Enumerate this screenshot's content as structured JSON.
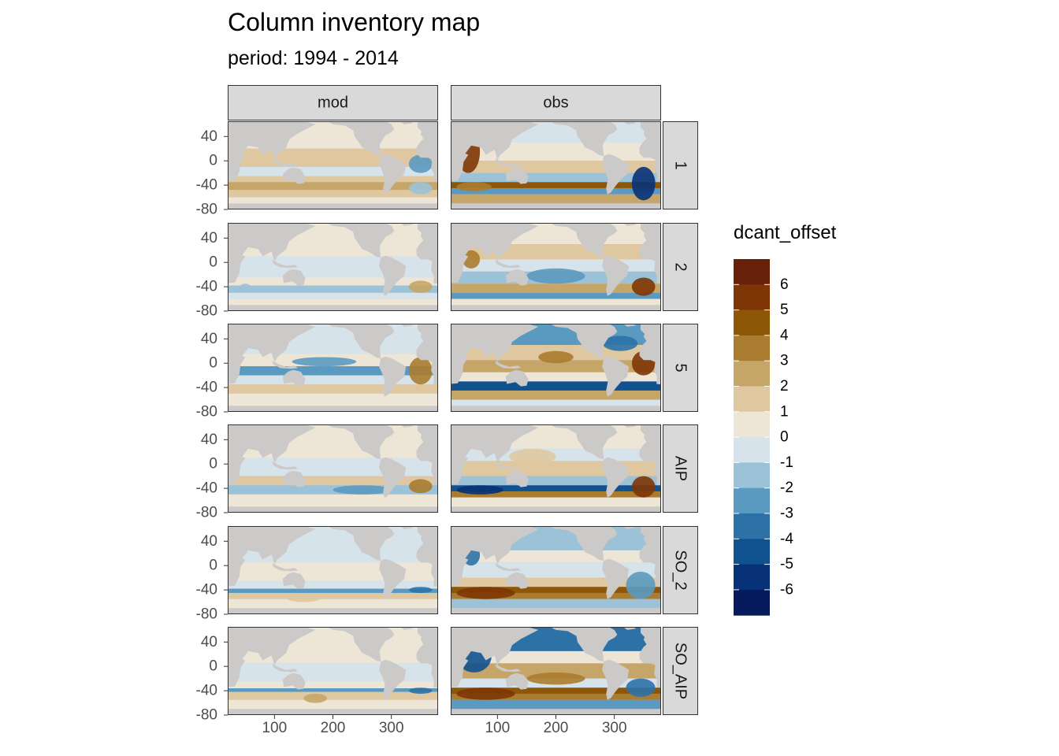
{
  "chart_data": {
    "type": "heatmap",
    "title": "Column inventory map",
    "subtitle": "period: 1994 - 2014",
    "xlabel": "",
    "ylabel": "",
    "x_ticks": [
      "100",
      "200",
      "300"
    ],
    "y_ticks": [
      "40",
      "0",
      "-40",
      "-80"
    ],
    "xlim": [
      20,
      380
    ],
    "ylim": [
      -80,
      65
    ],
    "facet_columns": [
      "mod",
      "obs"
    ],
    "facet_rows": [
      "1",
      "2",
      "5",
      "AIP",
      "SO_2",
      "SO_AIP"
    ],
    "fill_variable": "dcant_offset",
    "legend": {
      "title": "dcant_offset",
      "position": "right",
      "labels": [
        "6",
        "5",
        "4",
        "3",
        "2",
        "1",
        "0",
        "-1",
        "-2",
        "-3",
        "-4",
        "-5",
        "-6"
      ],
      "colors": [
        "#67200a",
        "#7e3606",
        "#8e5607",
        "#aa7c2f",
        "#c6a668",
        "#dfc8a0",
        "#ede5d6",
        "#d7e3ea",
        "#9cc2d8",
        "#5b9ac0",
        "#2c72a7",
        "#10518f",
        "#083277",
        "#061a5c"
      ]
    },
    "panel_background": "#ccc9c9",
    "strip_background": "#d9d9d9"
  }
}
